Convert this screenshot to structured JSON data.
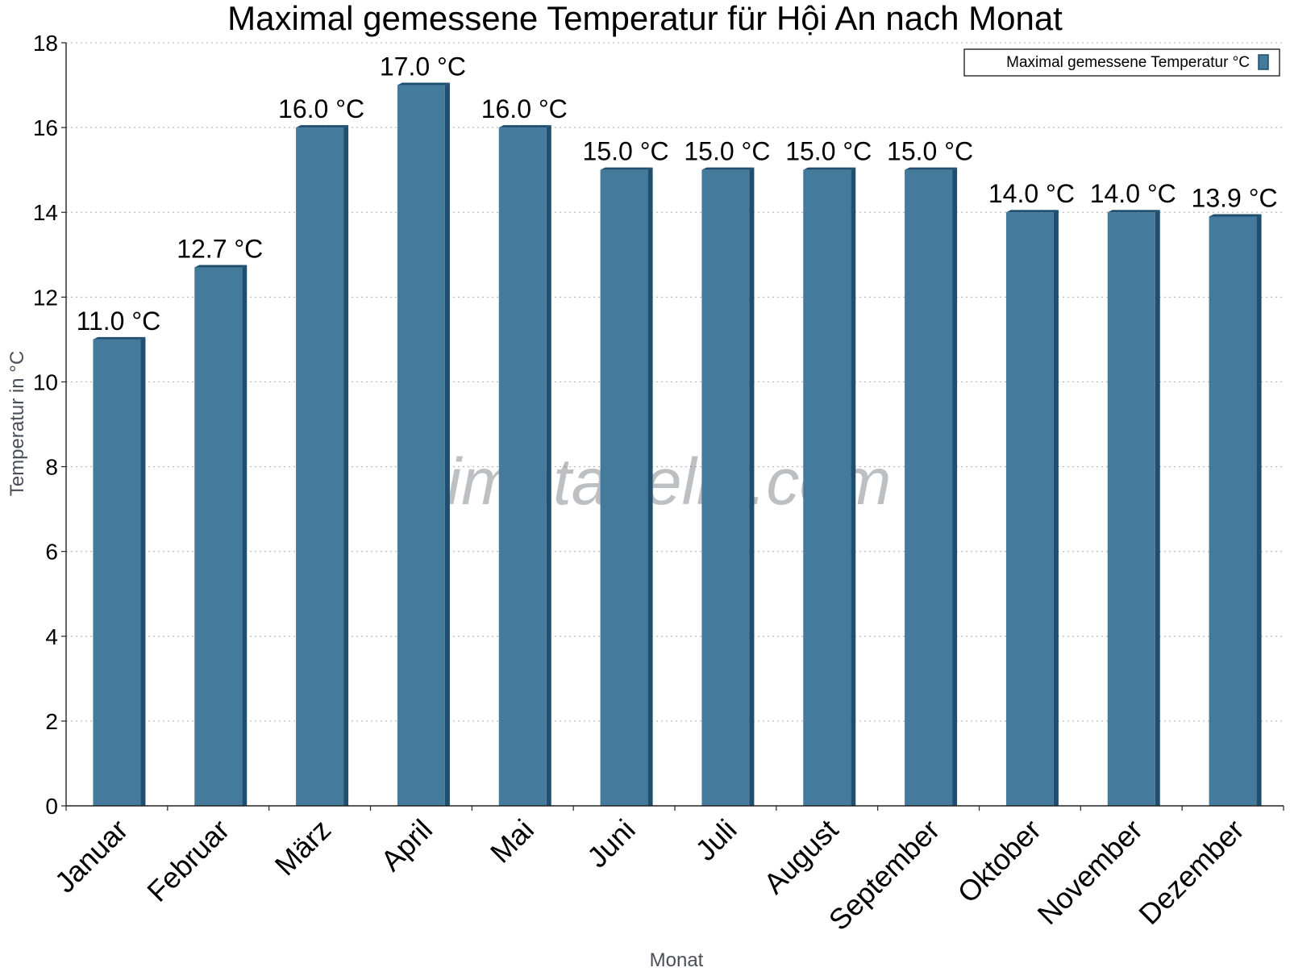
{
  "chart_data": {
    "type": "bar",
    "title": "Maximal gemessene Temperatur für Hội An nach Monat",
    "xlabel": "Monat",
    "ylabel": "Temperatur in °C",
    "categories": [
      "Januar",
      "Februar",
      "März",
      "April",
      "Mai",
      "Juni",
      "Juli",
      "August",
      "September",
      "Oktober",
      "November",
      "Dezember"
    ],
    "series": [
      {
        "name": "Maximal gemessene Temperatur °C",
        "values": [
          11.0,
          12.7,
          16.0,
          17.0,
          16.0,
          15.0,
          15.0,
          15.0,
          15.0,
          14.0,
          14.0,
          13.9
        ],
        "data_labels": [
          "11.0 °C",
          "12.7 °C",
          "16.0 °C",
          "17.0 °C",
          "16.0 °C",
          "15.0 °C",
          "15.0 °C",
          "15.0 °C",
          "15.0 °C",
          "14.0 °C",
          "14.0 °C",
          "13.9 °C"
        ],
        "color": "#447a9c",
        "side_color": "#1f4e6e"
      }
    ],
    "ylim": [
      0,
      18
    ],
    "yticks": [
      0,
      2,
      4,
      6,
      8,
      10,
      12,
      14,
      16,
      18
    ],
    "grid": true,
    "legend": "top-right"
  },
  "watermark": "klimatabelle.com"
}
